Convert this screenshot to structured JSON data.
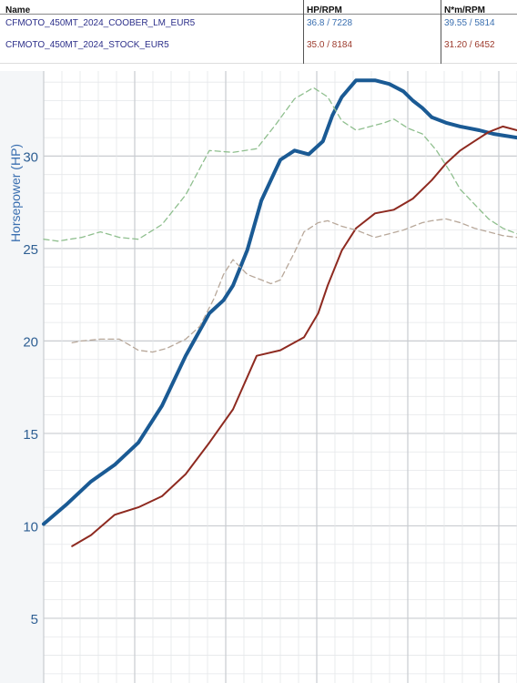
{
  "legend": {
    "headers": {
      "name": "Name",
      "hp_rpm": "HP/RPM",
      "nm_rpm": "N*m/RPM"
    },
    "rows": [
      {
        "name": "CFMOTO_450MT_2024_COOBER_LM_EUR5",
        "hp_rpm": "36.8 / 7228",
        "nm_rpm": "39.55 / 5814",
        "color": "#3a6fb0"
      },
      {
        "name": "CFMOTO_450MT_2024_STOCK_EUR5",
        "hp_rpm": "35.0 / 8184",
        "nm_rpm": "31.20 / 6452",
        "color": "#9c3a2c"
      }
    ]
  },
  "chart_data": {
    "type": "line",
    "ylabel": "Horsepower (HP)",
    "ylim": [
      1.5,
      34.6
    ],
    "yticks": [
      "5",
      "10",
      "15",
      "20",
      "25",
      "30"
    ],
    "xlim": [
      0,
      100
    ],
    "grid": true,
    "series": [
      {
        "name": "CFMOTO_450MT_2024_COOBER_LM_EUR5",
        "quantity": "power",
        "style": "solid-thick",
        "color": "#1a5a94",
        "x": [
          0,
          5,
          10,
          15,
          20,
          25,
          30,
          35,
          38,
          40,
          43,
          46,
          50,
          53,
          56,
          59,
          61,
          63,
          66,
          70,
          73,
          76,
          78,
          80,
          82,
          85,
          88,
          92,
          95,
          100
        ],
        "y": [
          10.1,
          11.2,
          12.4,
          13.3,
          14.5,
          16.5,
          19.2,
          21.5,
          22.2,
          23.0,
          24.9,
          27.6,
          29.8,
          30.3,
          30.1,
          30.8,
          32.2,
          33.2,
          34.1,
          34.1,
          33.9,
          33.5,
          33.0,
          32.6,
          32.1,
          31.8,
          31.6,
          31.4,
          31.2,
          31.0
        ]
      },
      {
        "name": "CFMOTO_450MT_2024_STOCK_EUR5",
        "quantity": "power",
        "style": "solid",
        "color": "#8e2a20",
        "x": [
          6,
          10,
          15,
          20,
          25,
          30,
          35,
          40,
          45,
          50,
          55,
          58,
          60,
          63,
          66,
          70,
          74,
          78,
          82,
          85,
          88,
          91,
          94,
          97,
          100
        ],
        "y": [
          8.9,
          9.5,
          10.6,
          11.0,
          11.6,
          12.8,
          14.5,
          16.3,
          19.2,
          19.5,
          20.2,
          21.5,
          23.0,
          24.9,
          26.1,
          26.9,
          27.1,
          27.7,
          28.7,
          29.6,
          30.3,
          30.8,
          31.3,
          31.6,
          31.4
        ]
      },
      {
        "name": "CFMOTO_450MT_2024_COOBER_LM_EUR5",
        "quantity": "torque",
        "style": "dashed",
        "color": "#8fbf8e",
        "x": [
          0,
          3,
          8,
          12,
          16,
          20,
          25,
          30,
          35,
          40,
          45,
          49,
          53,
          57,
          60,
          63,
          66,
          69,
          72,
          74,
          77,
          80,
          83,
          86,
          88,
          91,
          94,
          97,
          100
        ],
        "y": [
          25.5,
          25.4,
          25.6,
          25.9,
          25.6,
          25.5,
          26.3,
          27.9,
          30.3,
          30.2,
          30.4,
          31.7,
          33.1,
          33.7,
          33.2,
          31.9,
          31.4,
          31.6,
          31.8,
          32.0,
          31.5,
          31.2,
          30.3,
          29.1,
          28.2,
          27.4,
          26.6,
          26.1,
          25.8
        ]
      },
      {
        "name": "CFMOTO_450MT_2024_STOCK_EUR5",
        "quantity": "torque",
        "style": "dashed",
        "color": "#b8a89a",
        "x": [
          6,
          8,
          12,
          16,
          20,
          23,
          26,
          30,
          33,
          36,
          38,
          40,
          43,
          46,
          48,
          50,
          53,
          55,
          58,
          60,
          63,
          66,
          68,
          70,
          73,
          76,
          78,
          80,
          82,
          85,
          88,
          91,
          94,
          97,
          100
        ],
        "y": [
          19.9,
          20.0,
          20.1,
          20.1,
          19.5,
          19.4,
          19.6,
          20.1,
          20.8,
          22.3,
          23.6,
          24.4,
          23.6,
          23.3,
          23.1,
          23.3,
          24.8,
          25.9,
          26.4,
          26.5,
          26.2,
          26.0,
          25.8,
          25.6,
          25.8,
          26.0,
          26.2,
          26.4,
          26.5,
          26.6,
          26.4,
          26.1,
          25.9,
          25.7,
          25.6
        ]
      }
    ]
  }
}
